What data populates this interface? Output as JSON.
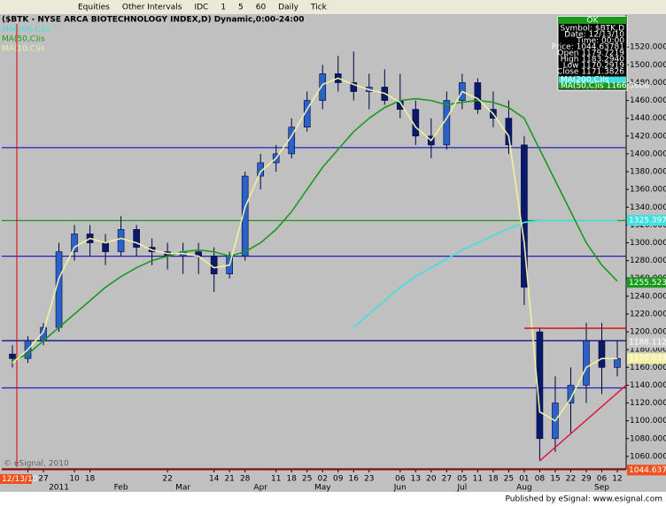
{
  "toolbar": {
    "items": [
      "Equities",
      "Other Intervals",
      "IDC",
      "1",
      "5",
      "60",
      "Daily",
      "Tick"
    ]
  },
  "info_box": {
    "title": "OK",
    "lines": [
      "Symbol: $BTK,D",
      "Date: 12/13/10",
      "Time: 00:00",
      "Price: 1044.63781",
      "Open 1179.7219",
      "High 1183.2940",
      "Low 1170.2919",
      "Close 1171.3826"
    ],
    "ma_lines": [
      {
        "text": "MA(200,C)is",
        "color": "#40e0e0"
      },
      {
        "text": "MA(50,C)is 1166.3606",
        "color": "#1a9a1a"
      }
    ]
  },
  "footer": "Published by eSignal: www.esignal.com",
  "copyright": "© eSignal, 2010",
  "chart_data": {
    "type": "candlestick",
    "title": "($BTK - NYSE ARCA BIOTECHNOLOGY INDEX,D) Dynamic,0:00-24:00",
    "cursor_label": "12/13/10",
    "categories": [
      "12/13/10",
      "20",
      "27",
      null,
      "10",
      "18",
      null,
      null,
      null,
      null,
      "22",
      null,
      null,
      "14",
      "21",
      "28",
      null,
      "11",
      "18",
      "25",
      "02",
      "09",
      "16",
      "23",
      null,
      "06",
      "13",
      "20",
      "27",
      "05",
      "11",
      "18",
      "25",
      "01",
      "08",
      "15",
      "22",
      "29",
      "06",
      "12"
    ],
    "month_labels": [
      null,
      null,
      null,
      "2011",
      null,
      null,
      null,
      "Feb",
      null,
      null,
      null,
      "Mar",
      null,
      null,
      null,
      null,
      "Apr",
      null,
      null,
      null,
      "May",
      null,
      null,
      null,
      null,
      "Jun",
      null,
      null,
      null,
      "Jul",
      null,
      null,
      null,
      "Aug",
      null,
      null,
      null,
      null,
      "Sep",
      null
    ],
    "open": [
      1175,
      1170,
      1190,
      1205,
      1290,
      1310,
      1300,
      1290,
      1315,
      1295,
      1290,
      1285,
      1290,
      1285,
      1265,
      1285,
      1375,
      1390,
      1400,
      1430,
      1460,
      1490,
      1480,
      1470,
      1475,
      1460,
      1450,
      1420,
      1410,
      1460,
      1480,
      1450,
      1440,
      1410,
      1200,
      1080,
      1120,
      1140,
      1190,
      1160
    ],
    "high": [
      1185,
      1195,
      1210,
      1300,
      1320,
      1320,
      1310,
      1330,
      1320,
      1305,
      1300,
      1300,
      1300,
      1295,
      1290,
      1380,
      1400,
      1410,
      1440,
      1470,
      1500,
      1510,
      1515,
      1490,
      1495,
      1490,
      1460,
      1440,
      1470,
      1490,
      1485,
      1470,
      1460,
      1420,
      1205,
      1150,
      1160,
      1210,
      1210,
      1190
    ],
    "low": [
      1160,
      1165,
      1185,
      1200,
      1280,
      1285,
      1275,
      1285,
      1285,
      1275,
      1270,
      1265,
      1265,
      1245,
      1260,
      1280,
      1360,
      1380,
      1395,
      1425,
      1450,
      1470,
      1460,
      1450,
      1455,
      1440,
      1410,
      1395,
      1405,
      1450,
      1445,
      1430,
      1400,
      1230,
      1055,
      1065,
      1085,
      1120,
      1130,
      1150
    ],
    "close": [
      1170,
      1190,
      1205,
      1290,
      1310,
      1300,
      1290,
      1315,
      1295,
      1290,
      1285,
      1290,
      1285,
      1265,
      1285,
      1375,
      1390,
      1400,
      1430,
      1460,
      1490,
      1480,
      1470,
      1475,
      1460,
      1450,
      1420,
      1410,
      1460,
      1480,
      1450,
      1440,
      1410,
      1250,
      1080,
      1120,
      1140,
      1190,
      1160,
      1170
    ],
    "up_color": "#2a62c8",
    "down_color": "#0a1a6a",
    "series": [
      {
        "name": "MA(200,C)is",
        "color": "#40e0e0",
        "values": [
          null,
          null,
          null,
          null,
          null,
          null,
          null,
          null,
          null,
          null,
          null,
          null,
          null,
          null,
          null,
          null,
          null,
          null,
          null,
          null,
          null,
          null,
          1205,
          1220,
          1235,
          1250,
          1262,
          1272,
          1282,
          1292,
          1300,
          1308,
          1316,
          1323,
          1325,
          1325,
          1325,
          1325,
          1325,
          1325
        ]
      },
      {
        "name": "MA(50,C)is",
        "color": "#1a9a1a",
        "values": [
          1168,
          1175,
          1190,
          1205,
          1220,
          1235,
          1250,
          1262,
          1272,
          1280,
          1285,
          1290,
          1292,
          1290,
          1285,
          1290,
          1300,
          1315,
          1335,
          1360,
          1385,
          1405,
          1425,
          1440,
          1452,
          1460,
          1462,
          1460,
          1455,
          1458,
          1460,
          1458,
          1452,
          1440,
          1405,
          1370,
          1335,
          1300,
          1275,
          1257
        ]
      },
      {
        "name": "MA(10,C)is",
        "color": "#f0f0a0",
        "values": [
          1165,
          1180,
          1200,
          1260,
          1295,
          1305,
          1300,
          1305,
          1300,
          1292,
          1288,
          1288,
          1285,
          1272,
          1275,
          1340,
          1380,
          1395,
          1420,
          1450,
          1478,
          1485,
          1478,
          1472,
          1468,
          1458,
          1430,
          1415,
          1440,
          1470,
          1462,
          1445,
          1420,
          1300,
          1110,
          1100,
          1125,
          1160,
          1170,
          1170
        ]
      }
    ],
    "levels": [
      {
        "value": 1407,
        "color": "#2020c0"
      },
      {
        "value": 1325,
        "color": "#1a9a1a"
      },
      {
        "value": 1285,
        "color": "#2020c0"
      },
      {
        "value": 1190,
        "color": "#000080"
      },
      {
        "value": 1137,
        "color": "#2020c0"
      },
      {
        "value": 1045,
        "color": "#e00000"
      }
    ],
    "trendlines": [
      {
        "color": "#e00000",
        "span": [
          33,
          39
        ],
        "values": [
          1204,
          1204
        ]
      },
      {
        "color": "#e01040",
        "span": [
          34,
          39
        ],
        "values": [
          1055,
          1140
        ]
      }
    ],
    "axis_markers": [
      {
        "label": "1325.3970",
        "value": 1325.397,
        "color": "#40e0e0"
      },
      {
        "label": "1255.5232",
        "value": 1255.5232,
        "color": "#1a9a1a"
      },
      {
        "label": "1188.1125",
        "value": 1188.1125,
        "color": "#c8c8c8"
      },
      {
        "label": "1170.0331",
        "value": 1170.0331,
        "color": "#f0f0a0"
      },
      {
        "label": "1044.63781",
        "value": 1044.63781,
        "color": "#f05020"
      }
    ],
    "ylim": [
      1048,
      1556
    ],
    "yticks": [
      {
        "value": 1060,
        "label": "1060.0000"
      },
      {
        "value": 1080,
        "label": "1080.0000"
      },
      {
        "value": 1100,
        "label": "1100.0000"
      },
      {
        "value": 1120,
        "label": "1120.0000"
      },
      {
        "value": 1140,
        "label": "1140.0000"
      },
      {
        "value": 1160,
        "label": "1160.0000"
      },
      {
        "value": 1180,
        "label": "1180.0000"
      },
      {
        "value": 1200,
        "label": "1200.0000"
      },
      {
        "value": 1220,
        "label": "1220.0000"
      },
      {
        "value": 1240,
        "label": "1240.0000"
      },
      {
        "value": 1260,
        "label": "1260.0000"
      },
      {
        "value": 1280,
        "label": "1280.0000"
      },
      {
        "value": 1300,
        "label": "1300.0000"
      },
      {
        "value": 1320,
        "label": "1320.0000"
      },
      {
        "value": 1340,
        "label": "1340.0000"
      },
      {
        "value": 1360,
        "label": "1360.0000"
      },
      {
        "value": 1380,
        "label": "1380.0000"
      },
      {
        "value": 1400,
        "label": "1400.0000"
      },
      {
        "value": 1420,
        "label": "1420.0000"
      },
      {
        "value": 1440,
        "label": "1440.0000"
      },
      {
        "value": 1460,
        "label": "1460.0000"
      },
      {
        "value": 1480,
        "label": "1480.0000"
      },
      {
        "value": 1500,
        "label": "1500.0000"
      },
      {
        "value": 1520,
        "label": "1520.0000"
      }
    ]
  }
}
